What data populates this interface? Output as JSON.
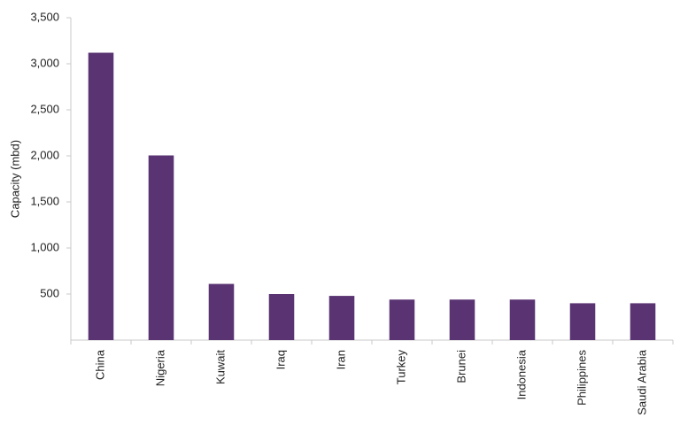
{
  "chart_data": {
    "type": "bar",
    "y_label": "Capacity (mbd)",
    "categories": [
      "China",
      "Nigeria",
      "Kuwait",
      "Iraq",
      "Iran",
      "Turkey",
      "Brunei",
      "Indonesia",
      "Philippines",
      "Saudi Arabia"
    ],
    "values": [
      3120,
      2005,
      610,
      500,
      480,
      440,
      440,
      440,
      400,
      400
    ],
    "color": "#5a3472",
    "ylim": [
      0,
      3500
    ],
    "yticks": [
      500,
      {
        "value": 1000,
        "label": "1,000"
      },
      {
        "value": 1500,
        "label": "1,500"
      },
      {
        "value": 2000,
        "label": "2,000"
      },
      {
        "value": 2500,
        "label": "2,500"
      },
      {
        "value": 3000,
        "label": "3,000"
      },
      {
        "value": 3500,
        "label": "3,500"
      }
    ],
    "grid": false
  }
}
